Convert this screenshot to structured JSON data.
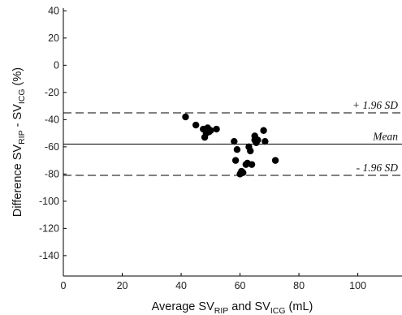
{
  "chart_data": {
    "type": "scatter",
    "title": "",
    "xlabel": "Average SV_RIP and SV_ICG (mL)",
    "ylabel": "Difference SV_RIP - SV_ICG (%)",
    "xlabel_parts": {
      "pre": "Average SV",
      "sub1": "RIP",
      "mid": " and SV",
      "sub2": "ICG",
      "post": " (mL)"
    },
    "ylabel_parts": {
      "pre": "Difference SV",
      "sub1": "RIP",
      "mid": " - SV",
      "sub2": "ICG",
      "post": " (%)"
    },
    "xlim": [
      0,
      115
    ],
    "ylim": [
      -155,
      42
    ],
    "xticks": [
      0,
      20,
      40,
      60,
      80,
      100
    ],
    "yticks": [
      40,
      20,
      0,
      -20,
      -40,
      -60,
      -80,
      -100,
      -120,
      -140
    ],
    "grid": false,
    "reference_lines": [
      {
        "name": "upper_loa",
        "label": "+ 1.96 SD",
        "y": -35,
        "style": "dashed"
      },
      {
        "name": "mean",
        "label": "Mean",
        "y": -58,
        "style": "solid"
      },
      {
        "name": "lower_loa",
        "label": "- 1.96 SD",
        "y": -81,
        "style": "dashed"
      }
    ],
    "x": [
      41.5,
      45,
      47.5,
      48,
      48.5,
      49,
      49.5,
      50,
      52,
      58,
      58.5,
      59,
      60,
      60.5,
      61,
      62,
      62.5,
      63,
      63.5,
      64,
      65,
      65,
      65.5,
      66,
      68,
      68.5,
      72
    ],
    "y": [
      -38,
      -44,
      -47,
      -53,
      -50,
      -46,
      -49,
      -48,
      -47,
      -56,
      -70,
      -62,
      -80,
      -78,
      -79,
      -73,
      -72,
      -60,
      -63,
      -73,
      -52,
      -55,
      -57,
      -55,
      -48,
      -56,
      -70
    ]
  }
}
